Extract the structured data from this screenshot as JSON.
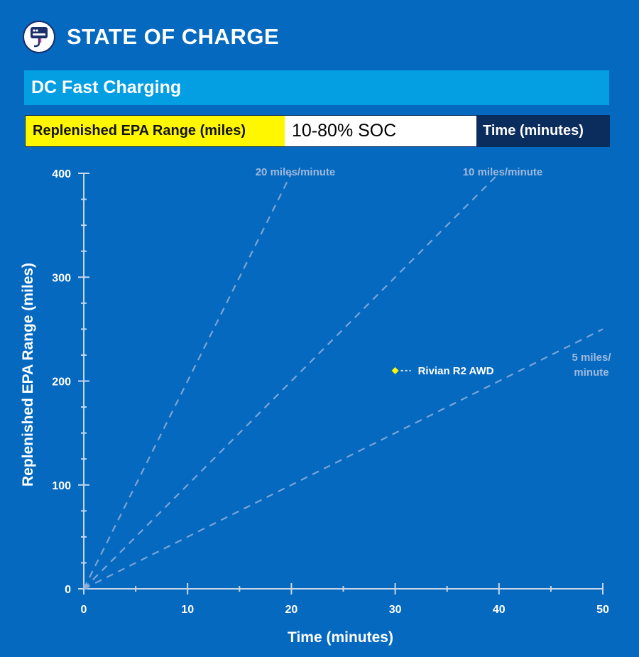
{
  "header": {
    "title": "STATE OF CHARGE"
  },
  "subtitle": "DC Fast Charging",
  "legend": {
    "y_label": "Replenished EPA Range (miles)",
    "soc_label": "10-80% SOC",
    "x_label": "Time (minutes)"
  },
  "colors": {
    "background": "#0569bf",
    "subtitle_bg": "#049ee3",
    "accent_yellow": "#fff700",
    "dark_navy": "#0b2d5e",
    "reference_line": "#8fb0dc",
    "axis": "#c9d6ea",
    "marker": "#fff700"
  },
  "icons": {
    "logo": "charger-plug-icon"
  },
  "chart_data": {
    "type": "scatter",
    "title": "DC Fast Charging",
    "xlabel": "Time (minutes)",
    "ylabel": "Replenished EPA Range (miles)",
    "xlim": [
      0,
      50
    ],
    "ylim": [
      0,
      400
    ],
    "x_ticks": [
      0,
      10,
      20,
      30,
      40,
      50
    ],
    "y_ticks": [
      0,
      100,
      200,
      300,
      400
    ],
    "grid": false,
    "reference_lines": [
      {
        "name": "20 miles/minute",
        "label_lines": [
          "20 miles/minute"
        ],
        "slope": 20
      },
      {
        "name": "10 miles/minute",
        "label_lines": [
          "10 miles/minute"
        ],
        "slope": 10
      },
      {
        "name": "5 miles/minute",
        "label_lines": [
          "5 miles/",
          "minute"
        ],
        "slope": 5
      }
    ],
    "series": [
      {
        "name": "Rivian  R2 AWD",
        "x": 30,
        "y": 210
      }
    ]
  }
}
